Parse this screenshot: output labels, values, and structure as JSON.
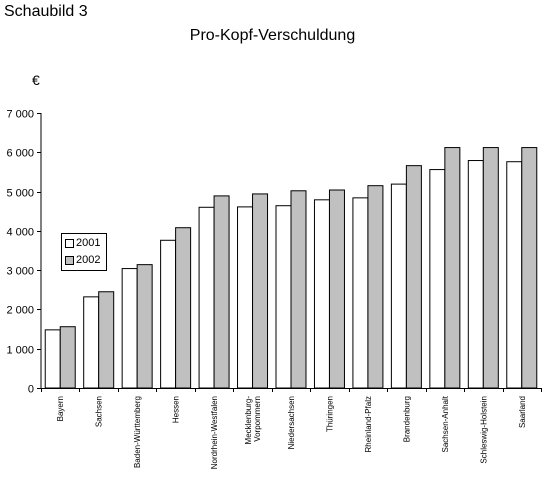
{
  "figure_label": "Schaubild 3",
  "chart_data": {
    "type": "bar",
    "title": "Pro-Kopf-Verschuldung",
    "ylabel": "€",
    "xlabel": "",
    "ylim": [
      0,
      7000
    ],
    "yticks": [
      0,
      1000,
      2000,
      3000,
      4000,
      5000,
      6000,
      7000
    ],
    "ytick_labels": [
      "0",
      "1 000",
      "2 000",
      "3 000",
      "4 000",
      "5 000",
      "6 000",
      "7 000"
    ],
    "categories": [
      [
        "Bayern"
      ],
      [
        "Sachsen"
      ],
      [
        "Baden-Württemberg"
      ],
      [
        "Hessen"
      ],
      [
        "Nordrhein-Westfalen"
      ],
      [
        "Mecklenburg-",
        "Vorpommern"
      ],
      [
        "Niedersachsen"
      ],
      [
        "Thüringen"
      ],
      [
        "Rheinland-Pfalz"
      ],
      [
        "Brandenburg"
      ],
      [
        "Sachsen-Anhalt"
      ],
      [
        "Schleswig-Holstein"
      ],
      [
        "Saarland"
      ]
    ],
    "series": [
      {
        "name": "2001",
        "color": "#ffffff",
        "values": [
          1480,
          2320,
          3040,
          3760,
          4600,
          4610,
          4640,
          4790,
          4840,
          5190,
          5560,
          5790,
          5760
        ]
      },
      {
        "name": "2002",
        "color": "#c0c0c0",
        "values": [
          1560,
          2450,
          3140,
          4080,
          4890,
          4940,
          5020,
          5040,
          5150,
          5660,
          6120,
          6120,
          6120
        ]
      }
    ],
    "grid": false,
    "legend_position": "left"
  }
}
